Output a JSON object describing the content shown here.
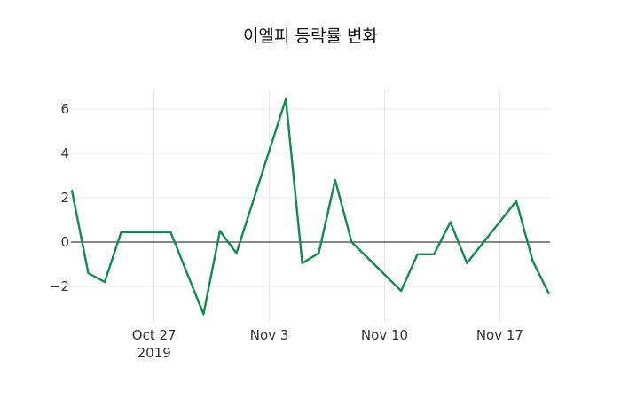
{
  "chart_data": {
    "type": "line",
    "title": "이엘피 등락률 변화",
    "xlabel": "",
    "ylabel": "",
    "grid": true,
    "legend": false,
    "xlim_days": [
      -0.05,
      29.05
    ],
    "ylim": [
      -3.6,
      6.88
    ],
    "colors": {
      "line": "#118c4f",
      "grid": "#e7e7e7",
      "zeroline": "#404040",
      "tick_text": "#333333",
      "title_text": "#111111",
      "background": "#ffffff"
    },
    "x_ticks": [
      {
        "label": "Oct 27",
        "sublabel": "2019",
        "day": 5
      },
      {
        "label": "Nov 3",
        "sublabel": "",
        "day": 12
      },
      {
        "label": "Nov 10",
        "sublabel": "",
        "day": 19
      },
      {
        "label": "Nov 17",
        "sublabel": "",
        "day": 26
      }
    ],
    "y_ticks": [
      {
        "label": "−2",
        "value": -2
      },
      {
        "label": "0",
        "value": 0
      },
      {
        "label": "2",
        "value": 2
      },
      {
        "label": "4",
        "value": 4
      },
      {
        "label": "6",
        "value": 6
      }
    ],
    "series": [
      {
        "name": "등락률",
        "color": "#118c4f",
        "points": [
          {
            "date": "2019-10-22",
            "day": 0,
            "value": 2.35
          },
          {
            "date": "2019-10-23",
            "day": 1,
            "value": -1.4
          },
          {
            "date": "2019-10-24",
            "day": 2,
            "value": -1.8
          },
          {
            "date": "2019-10-25",
            "day": 3,
            "value": 0.45
          },
          {
            "date": "2019-10-28",
            "day": 6,
            "value": 0.45
          },
          {
            "date": "2019-10-30",
            "day": 8,
            "value": -3.25
          },
          {
            "date": "2019-10-31",
            "day": 9,
            "value": 0.5
          },
          {
            "date": "2019-11-01",
            "day": 10,
            "value": -0.5
          },
          {
            "date": "2019-11-04",
            "day": 13,
            "value": 6.45
          },
          {
            "date": "2019-11-05",
            "day": 14,
            "value": -0.95
          },
          {
            "date": "2019-11-06",
            "day": 15,
            "value": -0.5
          },
          {
            "date": "2019-11-07",
            "day": 16,
            "value": 2.8
          },
          {
            "date": "2019-11-08",
            "day": 17,
            "value": 0.0
          },
          {
            "date": "2019-11-11",
            "day": 20,
            "value": -2.2
          },
          {
            "date": "2019-11-12",
            "day": 21,
            "value": -0.55
          },
          {
            "date": "2019-11-13",
            "day": 22,
            "value": -0.55
          },
          {
            "date": "2019-11-14",
            "day": 23,
            "value": 0.9
          },
          {
            "date": "2019-11-15",
            "day": 24,
            "value": -0.95
          },
          {
            "date": "2019-11-18",
            "day": 27,
            "value": 1.85
          },
          {
            "date": "2019-11-19",
            "day": 28,
            "value": -0.85
          },
          {
            "date": "2019-11-20",
            "day": 29,
            "value": -2.35
          }
        ]
      }
    ]
  }
}
